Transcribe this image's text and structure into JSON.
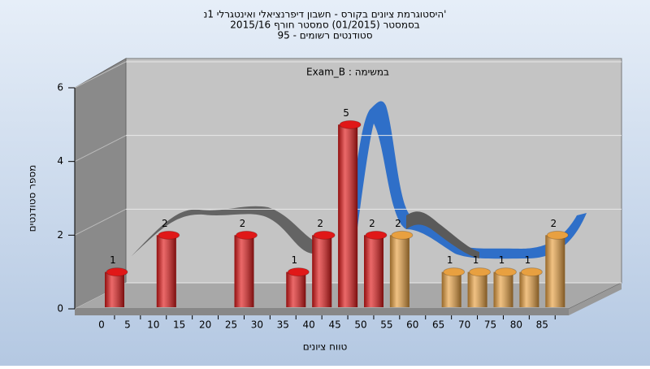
{
  "chart_data": {
    "type": "bar",
    "title": "היסטוגרמת ציונים בקורס - חשבון דיפרנציאלי ואינטגרלי 1נ'",
    "subtitle": "בסמסטר  (01/2015)  סמסטר חורף 2015/16",
    "subtitle2": "95 - סטודנטים רשומים",
    "annotation": "Exam_B : במשימה",
    "x_label": "טווח ציונים",
    "y_label": "מספר סטודנטים",
    "categories": [
      "0",
      "5",
      "10",
      "15",
      "20",
      "25",
      "30",
      "35",
      "40",
      "45",
      "50",
      "55",
      "60",
      "65",
      "70",
      "75",
      "80",
      "85"
    ],
    "values": [
      1,
      null,
      2,
      null,
      null,
      2,
      null,
      1,
      2,
      5,
      2,
      2,
      null,
      1,
      1,
      1,
      1,
      2
    ],
    "colors": [
      "#e01818",
      "#e01818",
      "#e01818",
      "#e01818",
      "#e01818",
      "#e01818",
      "#e01818",
      "#e01818",
      "#e01818",
      "#e01818",
      "#e01818",
      "#e8a040",
      "#e8a040",
      "#e8a040",
      "#e8a040",
      "#e8a040",
      "#e8a040",
      "#e8a040"
    ],
    "ylim": [
      0,
      6
    ],
    "yticks": [
      0,
      2,
      4,
      6
    ],
    "grid": true
  }
}
